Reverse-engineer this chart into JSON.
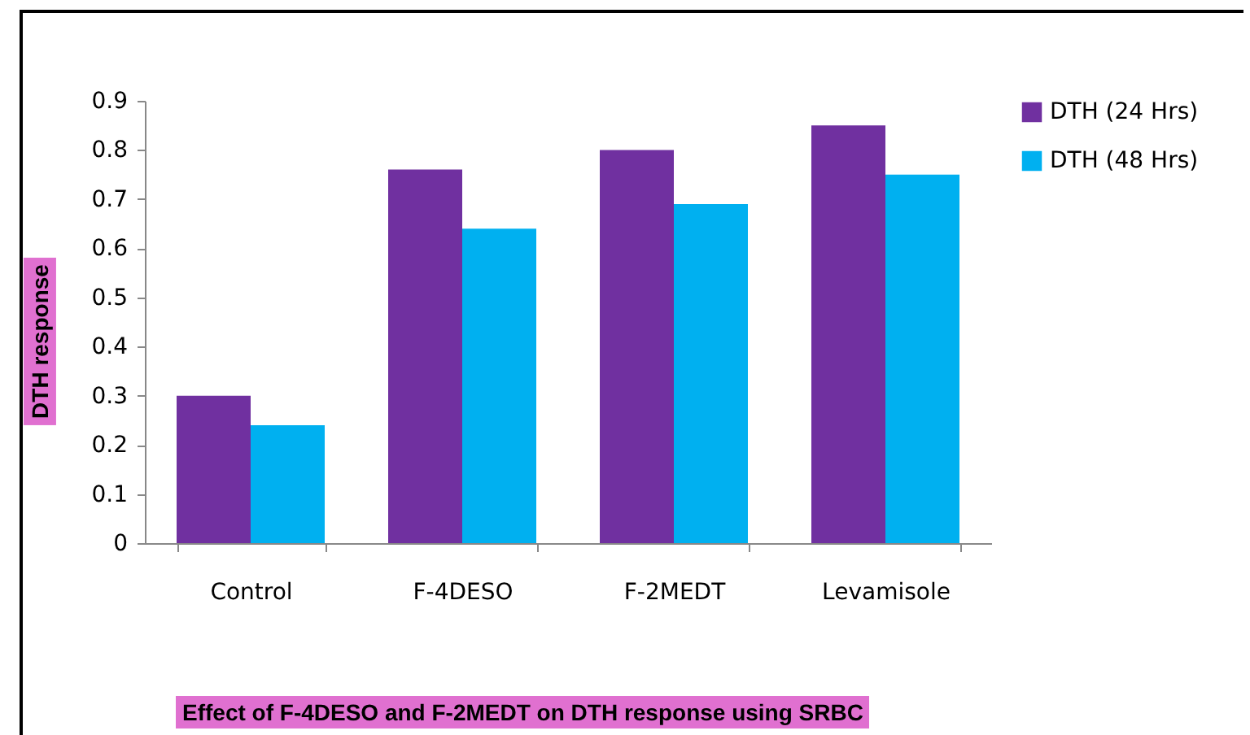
{
  "chart_data": {
    "type": "bar",
    "title": "Effect of F-4DESO and F-2MEDT on DTH response using SRBC",
    "ylabel": "DTH response",
    "categories": [
      "Control",
      "F-4DESO",
      "F-2MEDT",
      "Levamisole"
    ],
    "series": [
      {
        "name": "DTH (24 Hrs)",
        "color": "#7030a0",
        "values": [
          0.3,
          0.76,
          0.8,
          0.85
        ]
      },
      {
        "name": "DTH (48 Hrs)",
        "color": "#00b0f0",
        "values": [
          0.24,
          0.64,
          0.69,
          0.75
        ]
      }
    ],
    "ylim": [
      0,
      0.9
    ],
    "yticks": [
      0,
      0.1,
      0.2,
      0.3,
      0.4,
      0.5,
      0.6,
      0.7,
      0.8,
      0.9
    ],
    "grid": false,
    "legend": "right"
  }
}
